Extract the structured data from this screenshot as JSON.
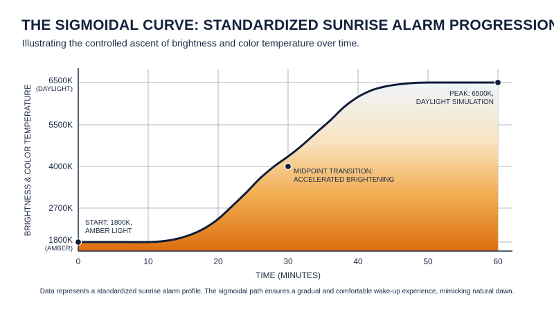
{
  "title": "THE SIGMOIDAL CURVE: STANDARDIZED SUNRISE ALARM PROGRESSION",
  "subtitle": "Illustrating the controlled ascent of brightness and color temperature over time.",
  "footnote": "Data represents a standardized sunrise alarm profile. The sigmoidal path ensures a gradual and comfortable wake-up experience, mimicking natural dawn.",
  "colors": {
    "title": "#14213d",
    "curve": "#0f1d3a",
    "grid": "#9aa3ad",
    "fill_top": "#eef5fb",
    "fill_bottom": "#dc6f10"
  },
  "chart_data": {
    "type": "area",
    "xlabel": "TIME (MINUTES)",
    "ylabel": "BRIGHTNESS & COLOR TEMPERATURE",
    "xlim": [
      0,
      60
    ],
    "x_ticks": [
      0,
      10,
      20,
      30,
      40,
      50,
      60
    ],
    "y_ticks": [
      {
        "label": "1800K",
        "sublabel": "(AMBER)"
      },
      {
        "label": "2700K",
        "sublabel": ""
      },
      {
        "label": "4000K",
        "sublabel": ""
      },
      {
        "label": "5500K",
        "sublabel": ""
      },
      {
        "label": "6500K",
        "sublabel": "(DAYLIGHT)"
      }
    ],
    "y_tick_values": [
      1800,
      2700,
      4000,
      5500,
      6500
    ],
    "grid": true,
    "series": [
      {
        "x": [
          0,
          5,
          10,
          12,
          14,
          16,
          18,
          20,
          22,
          24,
          26,
          28,
          30,
          32,
          34,
          36,
          38,
          40,
          42,
          44,
          46,
          48,
          50,
          55,
          60
        ],
        "y": [
          1800,
          1800,
          1800,
          1820,
          1880,
          1990,
          2160,
          2410,
          2760,
          3180,
          3630,
          4000,
          4360,
          4760,
          5210,
          5600,
          5920,
          6160,
          6320,
          6410,
          6460,
          6490,
          6500,
          6500,
          6500
        ]
      }
    ],
    "annotations": [
      {
        "x": 0,
        "y": 1800,
        "lines": [
          "START: 1800K,",
          "AMBER LIGHT"
        ]
      },
      {
        "x": 30,
        "y": 4000,
        "lines": [
          "MIDPOINT TRANSITION:",
          "ACCELERATED BRIGHTENING"
        ]
      },
      {
        "x": 60,
        "y": 6500,
        "lines": [
          "PEAK: 6500K,",
          "DAYLIGHT SIMULATION"
        ]
      }
    ]
  }
}
